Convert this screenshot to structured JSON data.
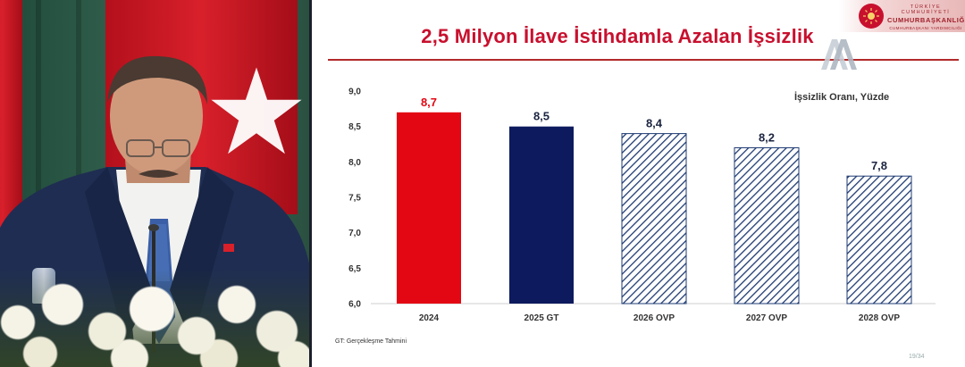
{
  "slide": {
    "title": "2,5 Milyon İlave İstihdamla Azalan İşsizlik",
    "unit_label": "İşsizlik Oranı, Yüzde",
    "footnote": "GT: Gerçekleşme Tahmini",
    "page": "19/34",
    "header": {
      "line1": "TÜRKİYE CUMHURİYETİ",
      "line2": "CUMHURBAŞKANLIĞI",
      "line3": "CUMHURBAŞKANI YARDIMCILIĞI"
    },
    "watermark": "AA",
    "colors": {
      "title": "#c8102e",
      "bar_2024": "#e30613",
      "bar_2025": "#0d1b5e",
      "bar_hatched": "#1f3b73",
      "rule": "#b22a2a"
    }
  },
  "chart_data": {
    "type": "bar",
    "categories": [
      "2024",
      "2025 GT",
      "2026 OVP",
      "2027 OVP",
      "2028 OVP"
    ],
    "values": [
      8.7,
      8.5,
      8.4,
      8.2,
      7.8
    ],
    "value_labels": [
      "8,7",
      "8,5",
      "8,4",
      "8,2",
      "7,8"
    ],
    "styles": [
      "solid-red",
      "solid-navy",
      "hatched",
      "hatched",
      "hatched"
    ],
    "ylim": [
      6.0,
      9.0
    ],
    "yticks": [
      6.0,
      6.5,
      7.0,
      7.5,
      8.0,
      8.5,
      9.0
    ],
    "ytick_labels": [
      "6,0",
      "6,5",
      "7,0",
      "7,5",
      "8,0",
      "8,5",
      "9,0"
    ],
    "grid": false,
    "ylabel": "İşsizlik Oranı, Yüzde"
  }
}
